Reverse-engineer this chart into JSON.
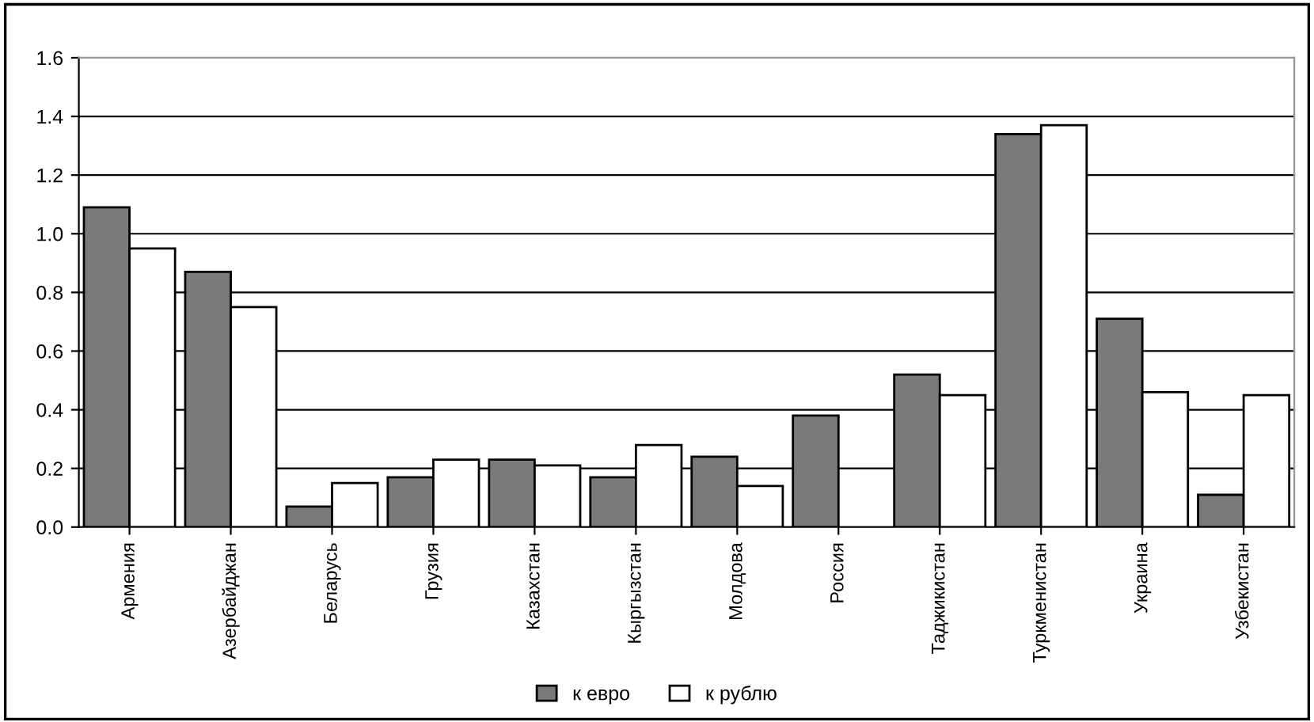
{
  "chart_data": {
    "type": "bar",
    "categories": [
      "Армения",
      "Азербайджан",
      "Беларусь",
      "Грузия",
      "Казахстан",
      "Кыргызстан",
      "Молдова",
      "Россия",
      "Таджикистан",
      "Туркменистан",
      "Украина",
      "Узбекистан"
    ],
    "series": [
      {
        "name": "к евро",
        "color": "#7a7a7a",
        "values": [
          1.09,
          0.87,
          0.07,
          0.17,
          0.23,
          0.17,
          0.24,
          0.38,
          0.52,
          1.34,
          0.71,
          0.11
        ]
      },
      {
        "name": "к рублю",
        "color": "#ffffff",
        "values": [
          0.95,
          0.75,
          0.15,
          0.23,
          0.21,
          0.28,
          0.14,
          null,
          0.45,
          1.37,
          0.46,
          0.45
        ]
      }
    ],
    "ylim": [
      0,
      1.6
    ],
    "yticks": [
      {
        "value": 0,
        "label": "0.0"
      },
      {
        "value": 0.2,
        "label": "0.2"
      },
      {
        "value": 0.4,
        "label": "0.4"
      },
      {
        "value": 0.6,
        "label": "0.6"
      },
      {
        "value": 0.8,
        "label": "0.8"
      },
      {
        "value": 1,
        "label": "1.0"
      },
      {
        "value": 1.2,
        "label": "1.2"
      },
      {
        "value": 1.4,
        "label": "1.4"
      },
      {
        "value": 1.6,
        "label": "1.6"
      }
    ],
    "grid": "y",
    "legend": "bottom"
  }
}
